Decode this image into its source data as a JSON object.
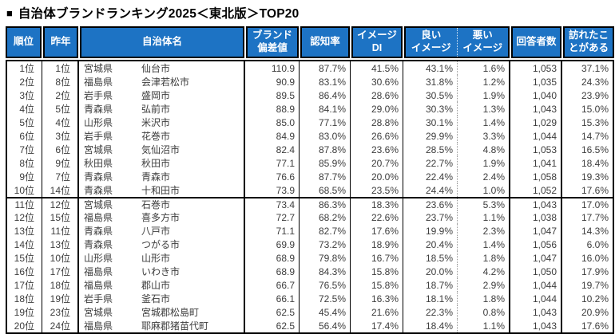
{
  "title": {
    "bullet": "■",
    "text": "自治体ブランドランキング2025＜東北版＞TOP20"
  },
  "colors": {
    "header_bg": "#1d73c4",
    "header_text": "#ffffff",
    "body_text": "#3d3d3d",
    "border": "#000000"
  },
  "table": {
    "headers": {
      "rank": "順位",
      "last_year": "昨年",
      "municipality": "自治体名",
      "brand_score": "ブランド\n偏差値",
      "recognition": "認知率",
      "image_di": "イメージ\nDI",
      "good_image": "良い\nイメージ",
      "bad_image": "悪い\nイメージ",
      "respondents": "回答者数",
      "visited": "訪れたこ\nとがある"
    },
    "rows": [
      {
        "rank": "1位",
        "last_year": "1位",
        "prefecture": "宮城県",
        "city": "仙台市",
        "brand_score": "110.9",
        "recognition": "87.7%",
        "image_di": "41.5%",
        "good_image": "43.1%",
        "bad_image": "1.6%",
        "respondents": "1,053",
        "visited": "37.1%"
      },
      {
        "rank": "2位",
        "last_year": "8位",
        "prefecture": "福島県",
        "city": "会津若松市",
        "brand_score": "90.9",
        "recognition": "83.1%",
        "image_di": "30.6%",
        "good_image": "31.8%",
        "bad_image": "1.2%",
        "respondents": "1,035",
        "visited": "24.3%"
      },
      {
        "rank": "3位",
        "last_year": "2位",
        "prefecture": "岩手県",
        "city": "盛岡市",
        "brand_score": "89.5",
        "recognition": "86.4%",
        "image_di": "28.6%",
        "good_image": "30.5%",
        "bad_image": "1.9%",
        "respondents": "1,040",
        "visited": "23.9%"
      },
      {
        "rank": "4位",
        "last_year": "5位",
        "prefecture": "青森県",
        "city": "弘前市",
        "brand_score": "88.9",
        "recognition": "84.1%",
        "image_di": "29.0%",
        "good_image": "30.3%",
        "bad_image": "1.3%",
        "respondents": "1,043",
        "visited": "15.0%"
      },
      {
        "rank": "5位",
        "last_year": "4位",
        "prefecture": "山形県",
        "city": "米沢市",
        "brand_score": "85.0",
        "recognition": "77.1%",
        "image_di": "28.8%",
        "good_image": "30.1%",
        "bad_image": "1.4%",
        "respondents": "1,029",
        "visited": "15.3%"
      },
      {
        "rank": "6位",
        "last_year": "3位",
        "prefecture": "岩手県",
        "city": "花巻市",
        "brand_score": "84.9",
        "recognition": "83.0%",
        "image_di": "26.6%",
        "good_image": "29.9%",
        "bad_image": "3.3%",
        "respondents": "1,044",
        "visited": "14.7%"
      },
      {
        "rank": "7位",
        "last_year": "6位",
        "prefecture": "宮城県",
        "city": "気仙沼市",
        "brand_score": "82.4",
        "recognition": "87.8%",
        "image_di": "23.6%",
        "good_image": "28.5%",
        "bad_image": "4.8%",
        "respondents": "1,053",
        "visited": "16.5%"
      },
      {
        "rank": "8位",
        "last_year": "9位",
        "prefecture": "秋田県",
        "city": "秋田市",
        "brand_score": "77.1",
        "recognition": "85.9%",
        "image_di": "20.7%",
        "good_image": "22.7%",
        "bad_image": "1.9%",
        "respondents": "1,041",
        "visited": "18.4%"
      },
      {
        "rank": "9位",
        "last_year": "7位",
        "prefecture": "青森県",
        "city": "青森市",
        "brand_score": "76.6",
        "recognition": "87.7%",
        "image_di": "20.0%",
        "good_image": "22.4%",
        "bad_image": "2.4%",
        "respondents": "1,058",
        "visited": "19.3%"
      },
      {
        "rank": "10位",
        "last_year": "14位",
        "prefecture": "青森県",
        "city": "十和田市",
        "brand_score": "73.9",
        "recognition": "68.5%",
        "image_di": "23.5%",
        "good_image": "24.4%",
        "bad_image": "1.0%",
        "respondents": "1,052",
        "visited": "17.6%"
      },
      {
        "rank": "11位",
        "last_year": "12位",
        "prefecture": "宮城県",
        "city": "石巻市",
        "brand_score": "73.4",
        "recognition": "86.3%",
        "image_di": "18.3%",
        "good_image": "23.6%",
        "bad_image": "5.3%",
        "respondents": "1,043",
        "visited": "17.0%"
      },
      {
        "rank": "12位",
        "last_year": "15位",
        "prefecture": "福島県",
        "city": "喜多方市",
        "brand_score": "72.7",
        "recognition": "68.2%",
        "image_di": "22.6%",
        "good_image": "23.7%",
        "bad_image": "1.1%",
        "respondents": "1,038",
        "visited": "17.7%"
      },
      {
        "rank": "13位",
        "last_year": "11位",
        "prefecture": "青森県",
        "city": "八戸市",
        "brand_score": "71.1",
        "recognition": "82.7%",
        "image_di": "17.6%",
        "good_image": "19.9%",
        "bad_image": "2.3%",
        "respondents": "1,047",
        "visited": "14.3%"
      },
      {
        "rank": "14位",
        "last_year": "13位",
        "prefecture": "青森県",
        "city": "つがる市",
        "brand_score": "69.9",
        "recognition": "73.2%",
        "image_di": "18.9%",
        "good_image": "20.4%",
        "bad_image": "1.4%",
        "respondents": "1,056",
        "visited": "6.0%"
      },
      {
        "rank": "15位",
        "last_year": "10位",
        "prefecture": "山形県",
        "city": "山形市",
        "brand_score": "68.9",
        "recognition": "79.8%",
        "image_di": "16.7%",
        "good_image": "18.5%",
        "bad_image": "1.8%",
        "respondents": "1,047",
        "visited": "16.0%"
      },
      {
        "rank": "16位",
        "last_year": "17位",
        "prefecture": "福島県",
        "city": "いわき市",
        "brand_score": "68.9",
        "recognition": "84.3%",
        "image_di": "15.8%",
        "good_image": "20.0%",
        "bad_image": "4.2%",
        "respondents": "1,050",
        "visited": "17.9%"
      },
      {
        "rank": "17位",
        "last_year": "18位",
        "prefecture": "福島県",
        "city": "郡山市",
        "brand_score": "66.7",
        "recognition": "76.5%",
        "image_di": "15.8%",
        "good_image": "18.7%",
        "bad_image": "2.9%",
        "respondents": "1,044",
        "visited": "19.7%"
      },
      {
        "rank": "18位",
        "last_year": "19位",
        "prefecture": "岩手県",
        "city": "釜石市",
        "brand_score": "66.1",
        "recognition": "72.5%",
        "image_di": "16.3%",
        "good_image": "18.1%",
        "bad_image": "1.8%",
        "respondents": "1,044",
        "visited": "10.2%"
      },
      {
        "rank": "19位",
        "last_year": "23位",
        "prefecture": "宮城県",
        "city": "宮城郡松島町",
        "brand_score": "62.5",
        "recognition": "45.4%",
        "image_di": "21.6%",
        "good_image": "22.3%",
        "bad_image": "0.8%",
        "respondents": "1,043",
        "visited": "20.9%"
      },
      {
        "rank": "20位",
        "last_year": "24位",
        "prefecture": "福島県",
        "city": "耶麻郡猪苗代町",
        "brand_score": "62.5",
        "recognition": "56.4%",
        "image_di": "17.4%",
        "good_image": "18.4%",
        "bad_image": "1.1%",
        "respondents": "1,043",
        "visited": "17.6%"
      }
    ]
  }
}
